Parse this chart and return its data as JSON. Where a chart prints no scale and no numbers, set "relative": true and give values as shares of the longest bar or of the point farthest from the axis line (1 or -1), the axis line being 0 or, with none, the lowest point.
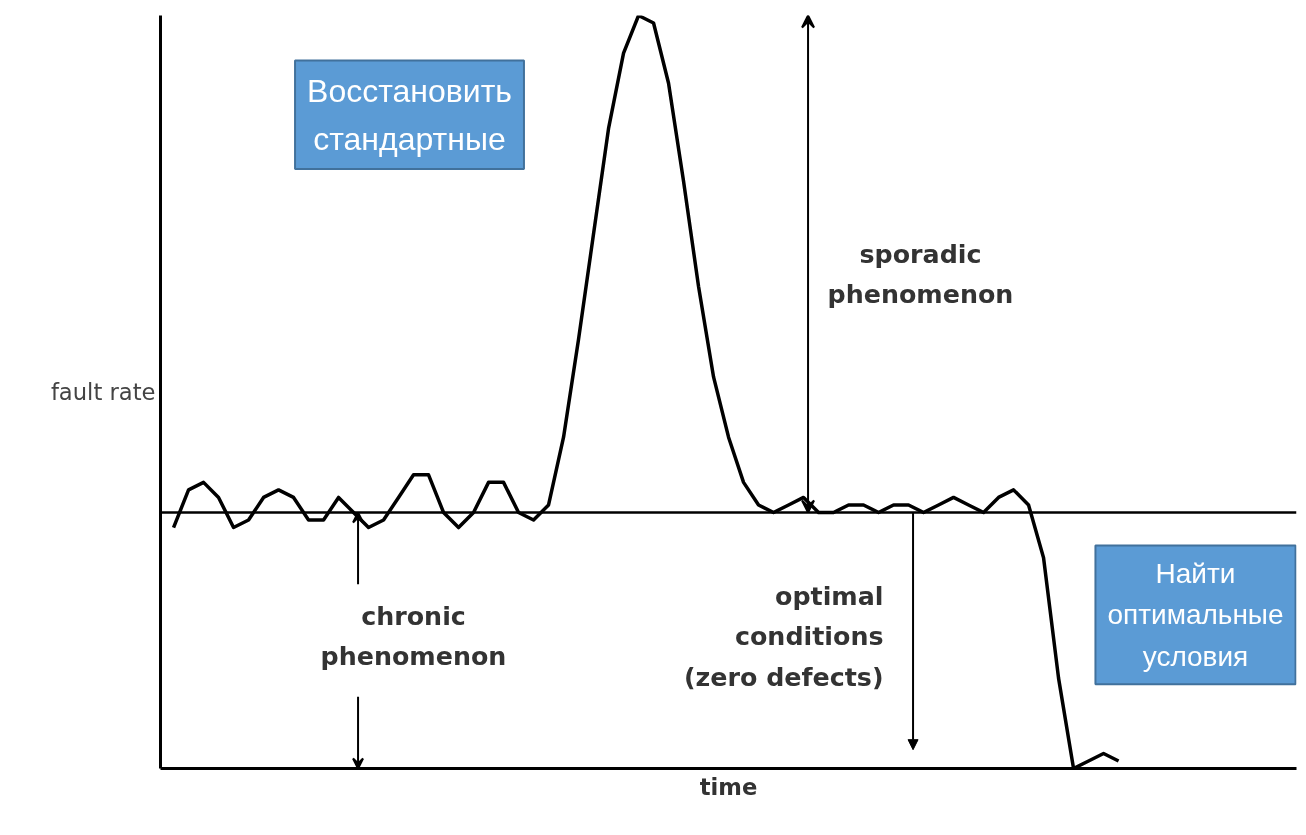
{
  "chart_data": {
    "type": "line",
    "relative": true,
    "xlabel": "time",
    "ylabel": "fault rate",
    "categories": [
      null,
      null,
      null,
      null,
      null,
      null,
      null,
      null,
      null,
      null,
      null,
      null,
      null,
      null,
      null,
      null,
      null,
      null,
      null,
      null,
      null,
      null,
      null,
      null,
      null,
      null,
      null,
      null,
      null,
      null,
      null,
      null,
      null,
      null,
      null,
      null,
      null,
      null,
      null,
      null,
      null,
      null,
      null,
      null,
      null,
      null,
      null,
      null,
      null,
      null,
      null,
      null,
      null,
      null,
      null,
      null,
      null,
      null,
      null,
      null,
      null,
      null,
      null,
      null
    ],
    "series": [
      {
        "color": "#000000",
        "values": [
          0.32,
          0.37,
          0.38,
          0.36,
          0.32,
          0.33,
          0.36,
          0.37,
          0.36,
          0.33,
          0.33,
          0.36,
          0.34,
          0.32,
          0.33,
          0.36,
          0.39,
          0.39,
          0.34,
          0.32,
          0.34,
          0.38,
          0.38,
          0.34,
          0.33,
          0.35,
          0.44,
          0.57,
          0.71,
          0.85,
          0.95,
          1.0,
          0.99,
          0.91,
          0.78,
          0.64,
          0.52,
          0.44,
          0.38,
          0.35,
          0.34,
          0.35,
          0.36,
          0.34,
          0.34,
          0.35,
          0.35,
          0.34,
          0.35,
          0.35,
          0.34,
          0.35,
          0.36,
          0.35,
          0.34,
          0.36,
          0.37,
          0.35,
          0.28,
          0.12,
          0.0,
          0.01,
          0.02,
          0.01
        ]
      }
    ],
    "ref_lines": [
      {
        "axis": "y",
        "value": 0.34,
        "label": null,
        "color": "#000000"
      }
    ],
    "annotations": [
      "sporadic phenomenon",
      "chronic phenomenon",
      "optimal conditions (zero defects)",
      "Восстановить стандартные",
      "Найти оптимальные условия"
    ],
    "marker": "none",
    "line_style": "solid"
  }
}
